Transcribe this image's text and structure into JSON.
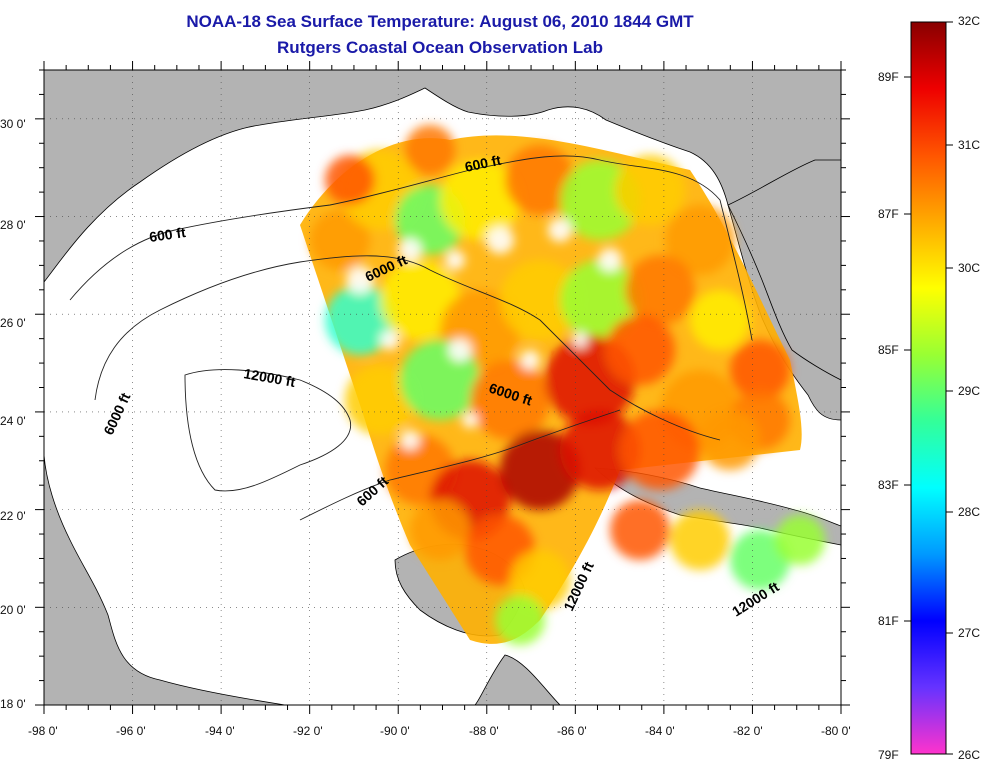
{
  "title": "NOAA-18 Sea Surface Temperature:  August 06, 2010 1844 GMT",
  "subtitle": "Rutgers Coastal Ocean Observation Lab",
  "map": {
    "lon_ticks": [
      "-98 0'",
      "-96 0'",
      "-94 0'",
      "-92 0'",
      "-90 0'",
      "-88 0'",
      "-86 0'",
      "-84 0'",
      "-82 0'",
      "-80 0'"
    ],
    "lat_ticks": [
      "18 0'",
      "20 0'",
      "22 0'",
      "24 0'",
      "26 0'",
      "28 0'",
      "30 0'"
    ],
    "lon_range": [
      -98,
      -80
    ],
    "lat_range": [
      18,
      31
    ],
    "grid": "dotted",
    "land_color": "#b3b3b3",
    "no_data_color": "#ffffff",
    "contour_labels": [
      "600 ft",
      "6000 ft",
      "600 ft",
      "12000 ft",
      "6000 ft",
      "6000 ft",
      "600 ft",
      "12000 ft",
      "12000 ft"
    ]
  },
  "colorbar": {
    "celsius": [
      "32C",
      "31C",
      "30C",
      "29C",
      "28C",
      "27C",
      "26C"
    ],
    "fahrenheit": [
      "89F",
      "87F",
      "85F",
      "83F",
      "81F",
      "79F"
    ],
    "colors": [
      "#ff33cc",
      "#6633ff",
      "#0000ff",
      "#0099ff",
      "#00ffff",
      "#33ff99",
      "#99ff33",
      "#ffff00",
      "#ffaa00",
      "#ff5500",
      "#ee0000",
      "#880000"
    ]
  }
}
